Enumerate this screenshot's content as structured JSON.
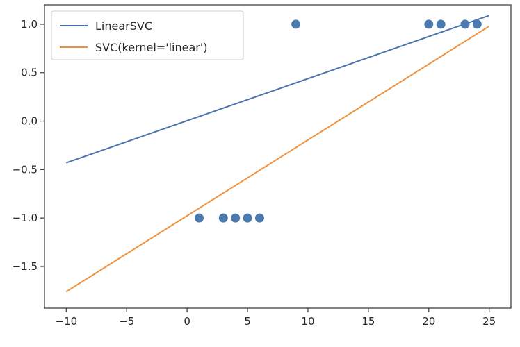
{
  "chart_data": {
    "type": "scatter",
    "title": "",
    "xlabel": "",
    "ylabel": "",
    "xlim": [
      -11.8,
      26.8
    ],
    "ylim": [
      -1.93,
      1.2
    ],
    "xticks": [
      -10,
      -5,
      0,
      5,
      10,
      15,
      20,
      25
    ],
    "yticks": [
      1.0,
      0.5,
      0.0,
      -0.5,
      -1.0,
      -1.5
    ],
    "xtick_labels": [
      "−10",
      "−5",
      "0",
      "5",
      "10",
      "15",
      "20",
      "25"
    ],
    "ytick_labels": [
      "1.0",
      "0.5",
      "0.0",
      "−0.5",
      "−1.0",
      "−1.5"
    ],
    "grid": false,
    "legend_position": "upper-left",
    "points": {
      "color": "#4a7ab0",
      "x": [
        1,
        3,
        4,
        5,
        6,
        9,
        20,
        21,
        23,
        24
      ],
      "y": [
        -1,
        -1,
        -1,
        -1,
        -1,
        1,
        1,
        1,
        1,
        1
      ]
    },
    "series": [
      {
        "name": "LinearSVC",
        "color": "#4c72b0",
        "x": [
          -10,
          25
        ],
        "y": [
          -0.43,
          1.09
        ]
      },
      {
        "name": "SVC(kernel='linear')",
        "color": "#f0913d",
        "x": [
          -10,
          25
        ],
        "y": [
          -1.76,
          0.98
        ]
      }
    ]
  }
}
